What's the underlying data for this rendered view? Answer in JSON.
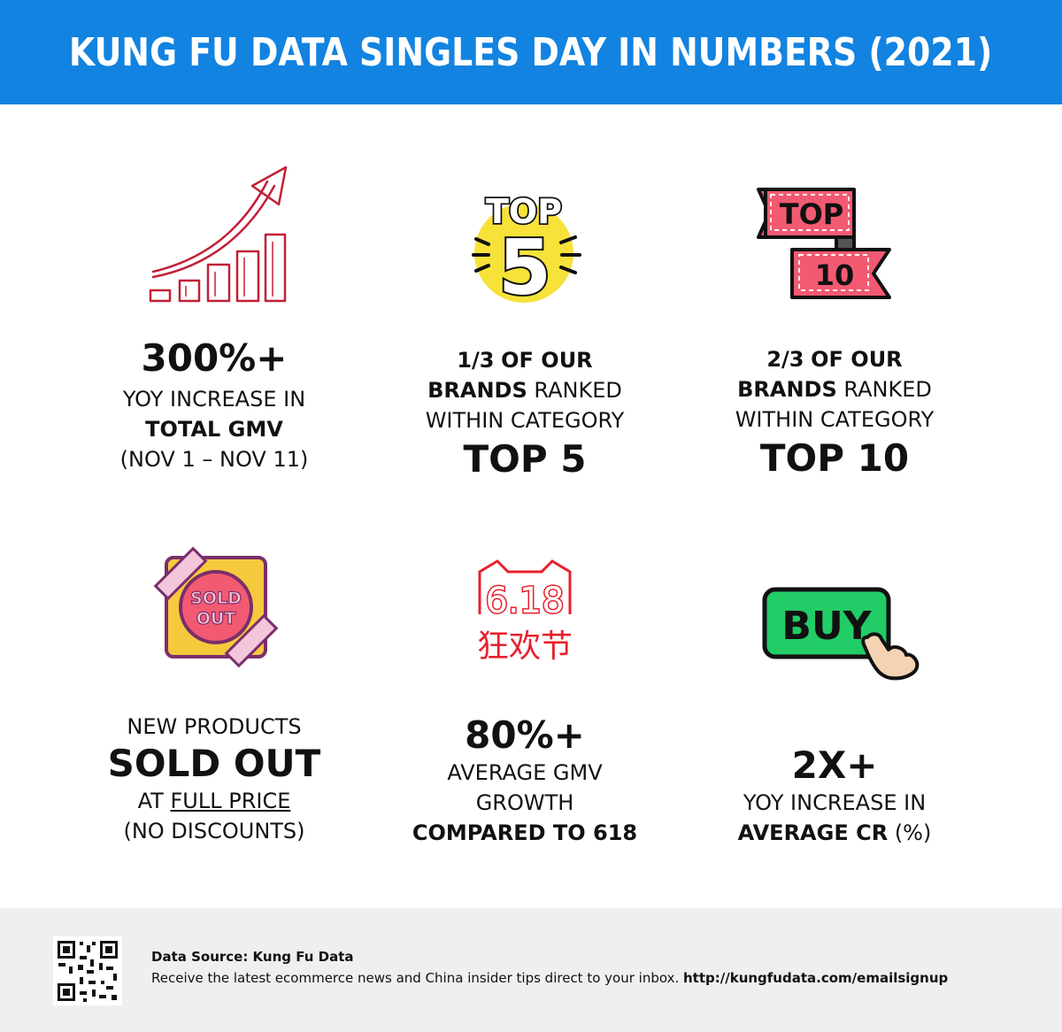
{
  "header": {
    "title": "KUNG FU DATA SINGLES DAY IN NUMBERS (2021)"
  },
  "stats": {
    "gmv": {
      "value": "300%+",
      "line1": "YOY INCREASE IN",
      "line2": "TOTAL GMV",
      "line3": "(NOV 1 – NOV 11)"
    },
    "top5": {
      "frac": "1/3",
      "of_our": "OF OUR",
      "brands": "BRANDS",
      "ranked": "RANKED",
      "within": "WITHIN CATEGORY",
      "big": "TOP 5",
      "icon_top": "TOP",
      "icon_num": "5"
    },
    "top10": {
      "frac": "2/3",
      "of_our": "OF OUR",
      "brands": "BRANDS",
      "ranked": "RANKED",
      "within": "WITHIN CATEGORY",
      "big": "TOP 10",
      "icon_top": "TOP",
      "icon_num": "10"
    },
    "soldout": {
      "line1": "NEW PRODUCTS",
      "big": "SOLD OUT",
      "at": "AT",
      "full_price": "FULL PRICE",
      "line4": "(NO DISCOUNTS)",
      "icon_l1": "SOLD",
      "icon_l2": "OUT"
    },
    "growth618": {
      "value": "80%+",
      "line1": "AVERAGE GMV",
      "line2": "GROWTH",
      "line3": "COMPARED TO 618",
      "logo_num": "6.18",
      "logo_cn": "狂欢节"
    },
    "cr": {
      "value": "2X+",
      "line1": "YOY INCREASE IN",
      "line2_bold": "AVERAGE CR",
      "line2_rest": "(%)",
      "icon_text": "BUY"
    }
  },
  "footer": {
    "source": "Data Source: Kung Fu Data",
    "tagline": "Receive the latest ecommerce news and China insider tips direct to your inbox.",
    "url": "http://kungfudata.com/emailsignup"
  },
  "colors": {
    "header_bg": "#1283e0",
    "footer_bg": "#efefef",
    "chart_red": "#c22035",
    "ribbon_pink": "#f25a72",
    "buy_green": "#22cc66",
    "soldout_yellow": "#f6c93d"
  }
}
